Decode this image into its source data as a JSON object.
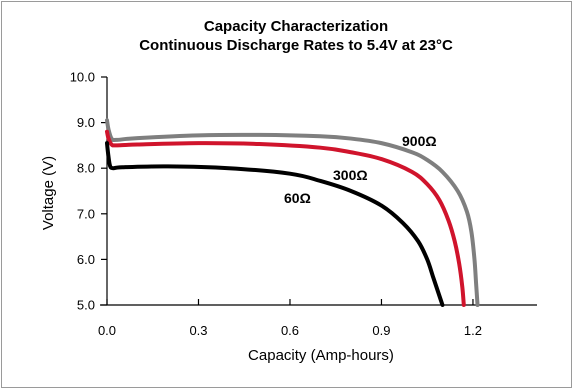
{
  "chart_data": {
    "type": "line",
    "title": "Capacity Characterization",
    "subtitle": "Continuous Discharge Rates to 5.4V at 23°C",
    "xlabel": "Capacity (Amp-hours)",
    "ylabel": "Voltage (V)",
    "xlim": [
      0,
      1.41
    ],
    "ylim": [
      5.0,
      10.0
    ],
    "x_ticks": [
      "0.0",
      "0.3",
      "0.6",
      "0.9",
      "1.2"
    ],
    "x_tick_values": [
      0.0,
      0.3,
      0.6,
      0.9,
      1.2
    ],
    "y_ticks": [
      "5.0",
      "6.0",
      "7.0",
      "8.0",
      "9.0",
      "10.0"
    ],
    "y_tick_values": [
      5.0,
      6.0,
      7.0,
      8.0,
      9.0,
      10.0
    ],
    "grid": false,
    "series": [
      {
        "name": "900Ω",
        "color": "#7f7f7f",
        "x": [
          0.0,
          0.005,
          0.015,
          0.03,
          0.1,
          0.3,
          0.5,
          0.7,
          0.8,
          0.9,
          1.0,
          1.05,
          1.1,
          1.15,
          1.18,
          1.195,
          1.205,
          1.21,
          1.215
        ],
        "y": [
          9.05,
          8.85,
          8.65,
          8.62,
          8.66,
          8.72,
          8.73,
          8.7,
          8.65,
          8.55,
          8.35,
          8.18,
          7.92,
          7.5,
          7.05,
          6.6,
          6.0,
          5.5,
          5.0
        ]
      },
      {
        "name": "300Ω",
        "color": "#d0142c",
        "x": [
          0.0,
          0.005,
          0.015,
          0.03,
          0.1,
          0.3,
          0.5,
          0.7,
          0.8,
          0.9,
          1.0,
          1.05,
          1.09,
          1.12,
          1.14,
          1.155,
          1.165,
          1.17
        ],
        "y": [
          8.8,
          8.65,
          8.52,
          8.5,
          8.52,
          8.55,
          8.53,
          8.45,
          8.35,
          8.2,
          7.92,
          7.65,
          7.3,
          6.85,
          6.4,
          5.9,
          5.4,
          5.0
        ]
      },
      {
        "name": "60Ω",
        "color": "#000000",
        "x": [
          0.0,
          0.004,
          0.01,
          0.02,
          0.05,
          0.2,
          0.4,
          0.6,
          0.7,
          0.8,
          0.9,
          0.97,
          1.02,
          1.05,
          1.07,
          1.085,
          1.095,
          1.1
        ],
        "y": [
          8.55,
          8.3,
          8.05,
          8.0,
          8.02,
          8.04,
          8.0,
          7.88,
          7.72,
          7.5,
          7.18,
          6.8,
          6.4,
          6.0,
          5.6,
          5.3,
          5.1,
          5.0
        ]
      }
    ]
  }
}
